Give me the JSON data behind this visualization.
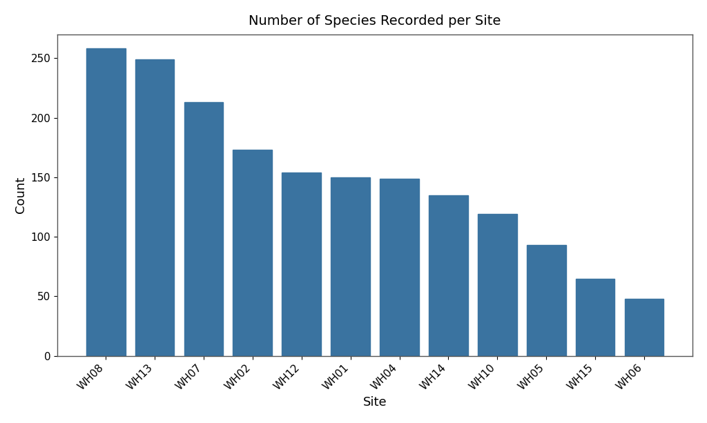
{
  "title": "Number of Species Recorded per Site",
  "xlabel": "Site",
  "ylabel": "Count",
  "categories": [
    "WH08",
    "WH13",
    "WH07",
    "WH02",
    "WH12",
    "WH01",
    "WH04",
    "WH14",
    "WH10",
    "WH05",
    "WH15",
    "WH06"
  ],
  "values": [
    258,
    249,
    213,
    173,
    154,
    150,
    149,
    135,
    119,
    93,
    65,
    48
  ],
  "bar_color": "#3a73a0",
  "background_color": "#ffffff",
  "ylim": [
    0,
    270
  ],
  "yticks": [
    0,
    50,
    100,
    150,
    200,
    250
  ],
  "title_fontsize": 14,
  "label_fontsize": 13,
  "tick_fontsize": 11,
  "bar_width": 0.8
}
